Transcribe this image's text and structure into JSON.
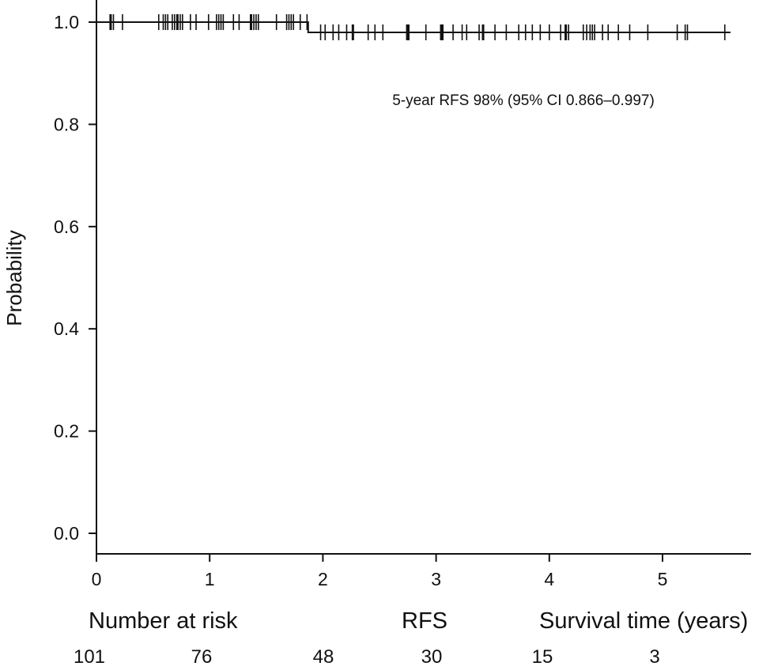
{
  "chart_data": {
    "type": "line",
    "ylabel": "Probability",
    "xlim": [
      0,
      5.6
    ],
    "ylim": [
      0.0,
      1.0
    ],
    "x_ticks": [
      "0",
      "1",
      "2",
      "3",
      "4",
      "5"
    ],
    "y_ticks": [
      "0.0",
      "0.2",
      "0.4",
      "0.6",
      "0.8",
      "1.0"
    ],
    "series": [
      {
        "steps": [
          {
            "x": 0.0,
            "y": 1.0
          },
          {
            "x": 1.87,
            "y": 0.98
          },
          {
            "x": 5.6,
            "y": 0.98
          }
        ],
        "censor_times": [
          0.12,
          0.13,
          0.15,
          0.23,
          0.55,
          0.59,
          0.61,
          0.63,
          0.67,
          0.69,
          0.71,
          0.72,
          0.74,
          0.76,
          0.83,
          0.88,
          0.99,
          1.06,
          1.08,
          1.1,
          1.12,
          1.21,
          1.26,
          1.36,
          1.37,
          1.39,
          1.41,
          1.43,
          1.59,
          1.68,
          1.7,
          1.72,
          1.74,
          1.8,
          1.86,
          1.98,
          2.02,
          2.09,
          2.14,
          2.21,
          2.26,
          2.27,
          2.4,
          2.46,
          2.53,
          2.74,
          2.75,
          2.76,
          2.91,
          3.04,
          3.05,
          3.06,
          3.15,
          3.23,
          3.27,
          3.38,
          3.41,
          3.42,
          3.52,
          3.62,
          3.73,
          3.79,
          3.85,
          3.92,
          4.0,
          4.1,
          4.14,
          4.15,
          4.17,
          4.3,
          4.33,
          4.36,
          4.38,
          4.4,
          4.47,
          4.52,
          4.61,
          4.71,
          4.87,
          5.13,
          5.2,
          5.22,
          5.55
        ]
      }
    ],
    "annotations": [
      "5-year RFS 98% (95% CI 0.866–0.997)"
    ],
    "legend": "none",
    "grid": false
  },
  "risk_table": {
    "header_left": "Number at risk",
    "header_middle": "RFS",
    "header_right": "Survival time (years)",
    "counts": [
      "101",
      "76",
      "48",
      "30",
      "15",
      "3"
    ]
  }
}
